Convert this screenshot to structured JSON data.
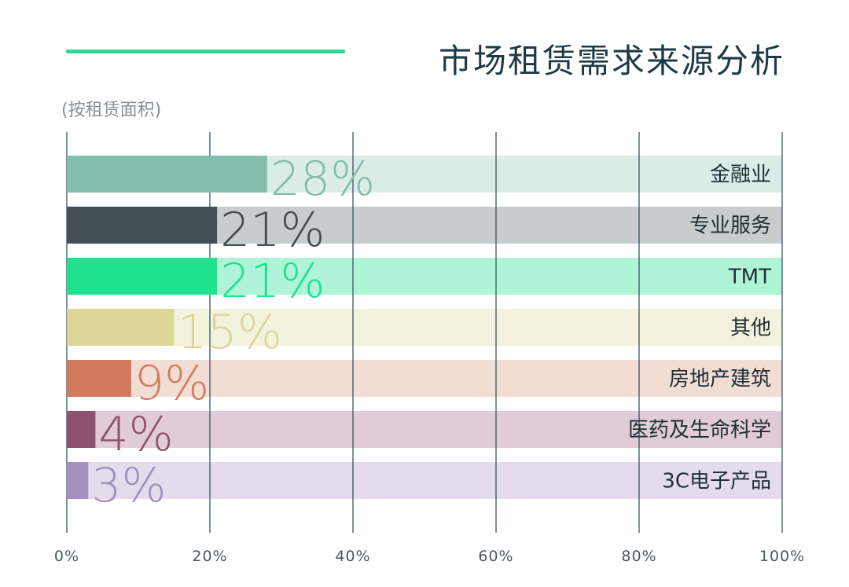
{
  "title": "市场租赁需求来源分析",
  "subtitle": "(按租赁面积)",
  "colors": {
    "accent_line": "#2fd99a",
    "title": "#1e3a46",
    "grid": "#2b4a55",
    "axis_text": "#4a5a60"
  },
  "chart_data": {
    "type": "bar",
    "orientation": "horizontal",
    "categories": [
      "金融业",
      "专业服务",
      "TMT",
      "其他",
      "房地产建筑",
      "医药及生命科学",
      "3C电子产品"
    ],
    "values": [
      28,
      21,
      21,
      15,
      9,
      4,
      3
    ],
    "value_labels": [
      "28%",
      "21%",
      "21%",
      "15%",
      "9%",
      "4%",
      "3%"
    ],
    "bar_colors": [
      "#84bdab",
      "#424e53",
      "#1ee28f",
      "#dcd697",
      "#d47a5c",
      "#8e5170",
      "#a48fbd"
    ],
    "track_colors": [
      "#dbece6",
      "#c7cdcd",
      "#b0f4d8",
      "#f3f2dc",
      "#f2ddd5",
      "#e2cbd8",
      "#e4dced"
    ],
    "label_colors": [
      "#84bdab",
      "#424e53",
      "#1ee28f",
      "#dcd697",
      "#d47a5c",
      "#8e5170",
      "#a48fbd"
    ],
    "xlim": [
      0,
      100
    ],
    "x_ticks": [
      0,
      20,
      40,
      60,
      80,
      100
    ],
    "x_tick_labels": [
      "0%",
      "20%",
      "40%",
      "60%",
      "80%",
      "100%"
    ],
    "grid": true
  }
}
